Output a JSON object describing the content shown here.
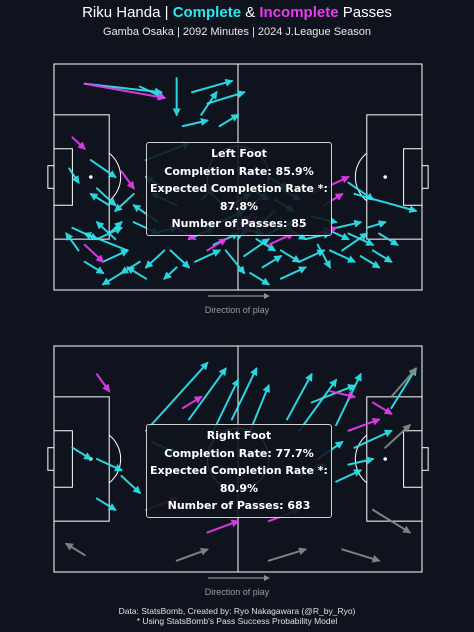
{
  "title": {
    "prefix": "Riku Handa | ",
    "complete": "Complete",
    "amp": " & ",
    "incomplete": "Incomplete",
    "suffix": " Passes"
  },
  "subtitle": "Gamba Osaka | 2092 Minutes | 2024 J.League Season",
  "colors": {
    "complete": "#2ee6f0",
    "incomplete": "#e83cf0",
    "other": "#8a8a8a",
    "pitch_line": "#ffffff",
    "background": "#0f131d"
  },
  "direction_label": "Direction of play",
  "panels": [
    {
      "name": "Left Foot",
      "stats": {
        "header": "Left Foot",
        "completion": "Completion Rate: 85.9%",
        "expected": "Expected Completion Rate *: 87.8%",
        "count": "Number of Passes: 85"
      }
    },
    {
      "name": "Right Foot",
      "stats": {
        "header": "Right Foot",
        "completion": "Completion Rate: 77.7%",
        "expected": "Expected Completion Rate *: 80.9%",
        "count": "Number of Passes: 683"
      }
    }
  ],
  "chart_data": [
    {
      "type": "scatter",
      "title": "Left Foot",
      "xlim": [
        0,
        120
      ],
      "ylim": [
        0,
        80
      ],
      "series": [
        {
          "name": "Complete",
          "passes": [
            [
              10,
              7,
              35,
              10
            ],
            [
              40,
              5,
              40,
              18
            ],
            [
              45,
              10,
              58,
              6
            ],
            [
              50,
              14,
              62,
              10
            ],
            [
              48,
              18,
              53,
              10
            ],
            [
              42,
              22,
              50,
              20
            ],
            [
              54,
              22,
              60,
              18
            ],
            [
              12,
              34,
              20,
              40
            ],
            [
              5,
              37,
              8,
              42
            ],
            [
              28,
              8,
              36,
              12
            ],
            [
              30,
              34,
              44,
              28
            ],
            [
              14,
              44,
              20,
              50
            ],
            [
              18,
              60,
              22,
              56
            ],
            [
              26,
              56,
              34,
              60
            ],
            [
              32,
              60,
              40,
              58
            ],
            [
              36,
              66,
              30,
              72
            ],
            [
              44,
              62,
              52,
              58
            ],
            [
              46,
              70,
              54,
              66
            ],
            [
              52,
              64,
              60,
              60
            ],
            [
              56,
              66,
              62,
              74
            ],
            [
              60,
              58,
              68,
              60
            ],
            [
              62,
              68,
              70,
              62
            ],
            [
              66,
              62,
              72,
              66
            ],
            [
              68,
              72,
              74,
              68
            ],
            [
              70,
              60,
              78,
              56
            ],
            [
              74,
              66,
              80,
              70
            ],
            [
              76,
              58,
              82,
              62
            ],
            [
              80,
              70,
              88,
              66
            ],
            [
              82,
              62,
              90,
              60
            ],
            [
              84,
              54,
              92,
              56
            ],
            [
              86,
              64,
              90,
              72
            ],
            [
              88,
              58,
              96,
              62
            ],
            [
              90,
              66,
              98,
              70
            ],
            [
              92,
              58,
              100,
              56
            ],
            [
              94,
              66,
              102,
              60
            ],
            [
              96,
              60,
              104,
              64
            ],
            [
              100,
              68,
              106,
              72
            ],
            [
              102,
              58,
              108,
              56
            ],
            [
              104,
              66,
              110,
              70
            ],
            [
              106,
              60,
              112,
              64
            ],
            [
              24,
              66,
              10,
              60
            ],
            [
              20,
              62,
              14,
              56
            ],
            [
              28,
              70,
              22,
              74
            ],
            [
              34,
              56,
              26,
              50
            ],
            [
              38,
              66,
              44,
              72
            ],
            [
              6,
              58,
              14,
              62
            ],
            [
              8,
              66,
              4,
              60
            ],
            [
              10,
              70,
              16,
              74
            ],
            [
              14,
              62,
              22,
              58
            ],
            [
              16,
              70,
              24,
              66
            ],
            [
              70,
              40,
              76,
              44
            ],
            [
              72,
              48,
              78,
              52
            ],
            [
              64,
              44,
              70,
              48
            ],
            [
              58,
              50,
              64,
              46
            ],
            [
              54,
              56,
              62,
              52
            ],
            [
              72,
              52,
              66,
              58
            ],
            [
              74,
              44,
              80,
              48
            ],
            [
              60,
              62,
              64,
              56
            ],
            [
              98,
              46,
              118,
              52
            ],
            [
              96,
              42,
              104,
              48
            ],
            [
              40,
              72,
              36,
              76
            ],
            [
              30,
              76,
              24,
              72
            ],
            [
              22,
              74,
              16,
              78
            ],
            [
              64,
              74,
              70,
              78
            ],
            [
              74,
              76,
              82,
              72
            ],
            [
              48,
              48,
              52,
              44
            ],
            [
              40,
              50,
              32,
              46
            ],
            [
              36,
              44,
              30,
              40
            ],
            [
              26,
              46,
              20,
              52
            ],
            [
              18,
              50,
              12,
              46
            ]
          ]
        },
        {
          "name": "Incomplete",
          "passes": [
            [
              10,
              7,
              36,
              12
            ],
            [
              6,
              26,
              10,
              30
            ],
            [
              22,
              38,
              26,
              44
            ],
            [
              58,
              58,
              64,
              54
            ],
            [
              66,
              54,
              62,
              60
            ],
            [
              70,
              64,
              78,
              60
            ],
            [
              86,
              60,
              92,
              58
            ],
            [
              88,
              50,
              94,
              46
            ],
            [
              10,
              64,
              16,
              70
            ],
            [
              84,
              46,
              96,
              40
            ],
            [
              50,
              66,
              56,
              62
            ],
            [
              40,
              58,
              46,
              62
            ]
          ]
        }
      ]
    },
    {
      "type": "scatter",
      "title": "Right Foot",
      "xlim": [
        0,
        120
      ],
      "ylim": [
        0,
        80
      ],
      "series": [
        {
          "name": "Complete",
          "passes": [
            [
              30,
              30,
              50,
              6
            ],
            [
              44,
              26,
              56,
              8
            ],
            [
              52,
              30,
              60,
              12
            ],
            [
              58,
              26,
              66,
              8
            ],
            [
              64,
              30,
              70,
              14
            ],
            [
              76,
              26,
              84,
              10
            ],
            [
              80,
              30,
              92,
              12
            ],
            [
              92,
              28,
              100,
              10
            ],
            [
              84,
              20,
              98,
              14
            ],
            [
              110,
              22,
              118,
              8
            ],
            [
              14,
              40,
              22,
              44
            ],
            [
              6,
              36,
              12,
              40
            ],
            [
              32,
              34,
              40,
              38
            ],
            [
              22,
              46,
              28,
              52
            ],
            [
              14,
              54,
              20,
              58
            ],
            [
              80,
              46,
              88,
              42
            ],
            [
              92,
              48,
              100,
              44
            ],
            [
              96,
              42,
              104,
              40
            ],
            [
              98,
              36,
              110,
              30
            ],
            [
              86,
              40,
              94,
              34
            ]
          ]
        },
        {
          "name": "Incomplete",
          "passes": [
            [
              14,
              10,
              18,
              16
            ],
            [
              42,
              22,
              48,
              18
            ],
            [
              90,
              16,
              98,
              18
            ],
            [
              104,
              20,
              110,
              24
            ],
            [
              96,
              30,
              106,
              26
            ],
            [
              30,
              58,
              40,
              54
            ],
            [
              50,
              66,
              60,
              62
            ],
            [
              70,
              62,
              80,
              58
            ]
          ]
        },
        {
          "name": "Other",
          "passes": [
            [
              108,
              36,
              116,
              28
            ],
            [
              104,
              58,
              116,
              66
            ],
            [
              40,
              76,
              50,
              72
            ],
            [
              70,
              76,
              82,
              72
            ],
            [
              94,
              72,
              106,
              76
            ],
            [
              10,
              74,
              4,
              70
            ],
            [
              110,
              18,
              118,
              8
            ]
          ]
        }
      ]
    }
  ],
  "footer": {
    "line1": "Data: StatsBomb, Created by: Ryo Nakagawara (@R_by_Ryo)",
    "line2": "* Using StatsBomb's Pass Success Probability Model"
  }
}
